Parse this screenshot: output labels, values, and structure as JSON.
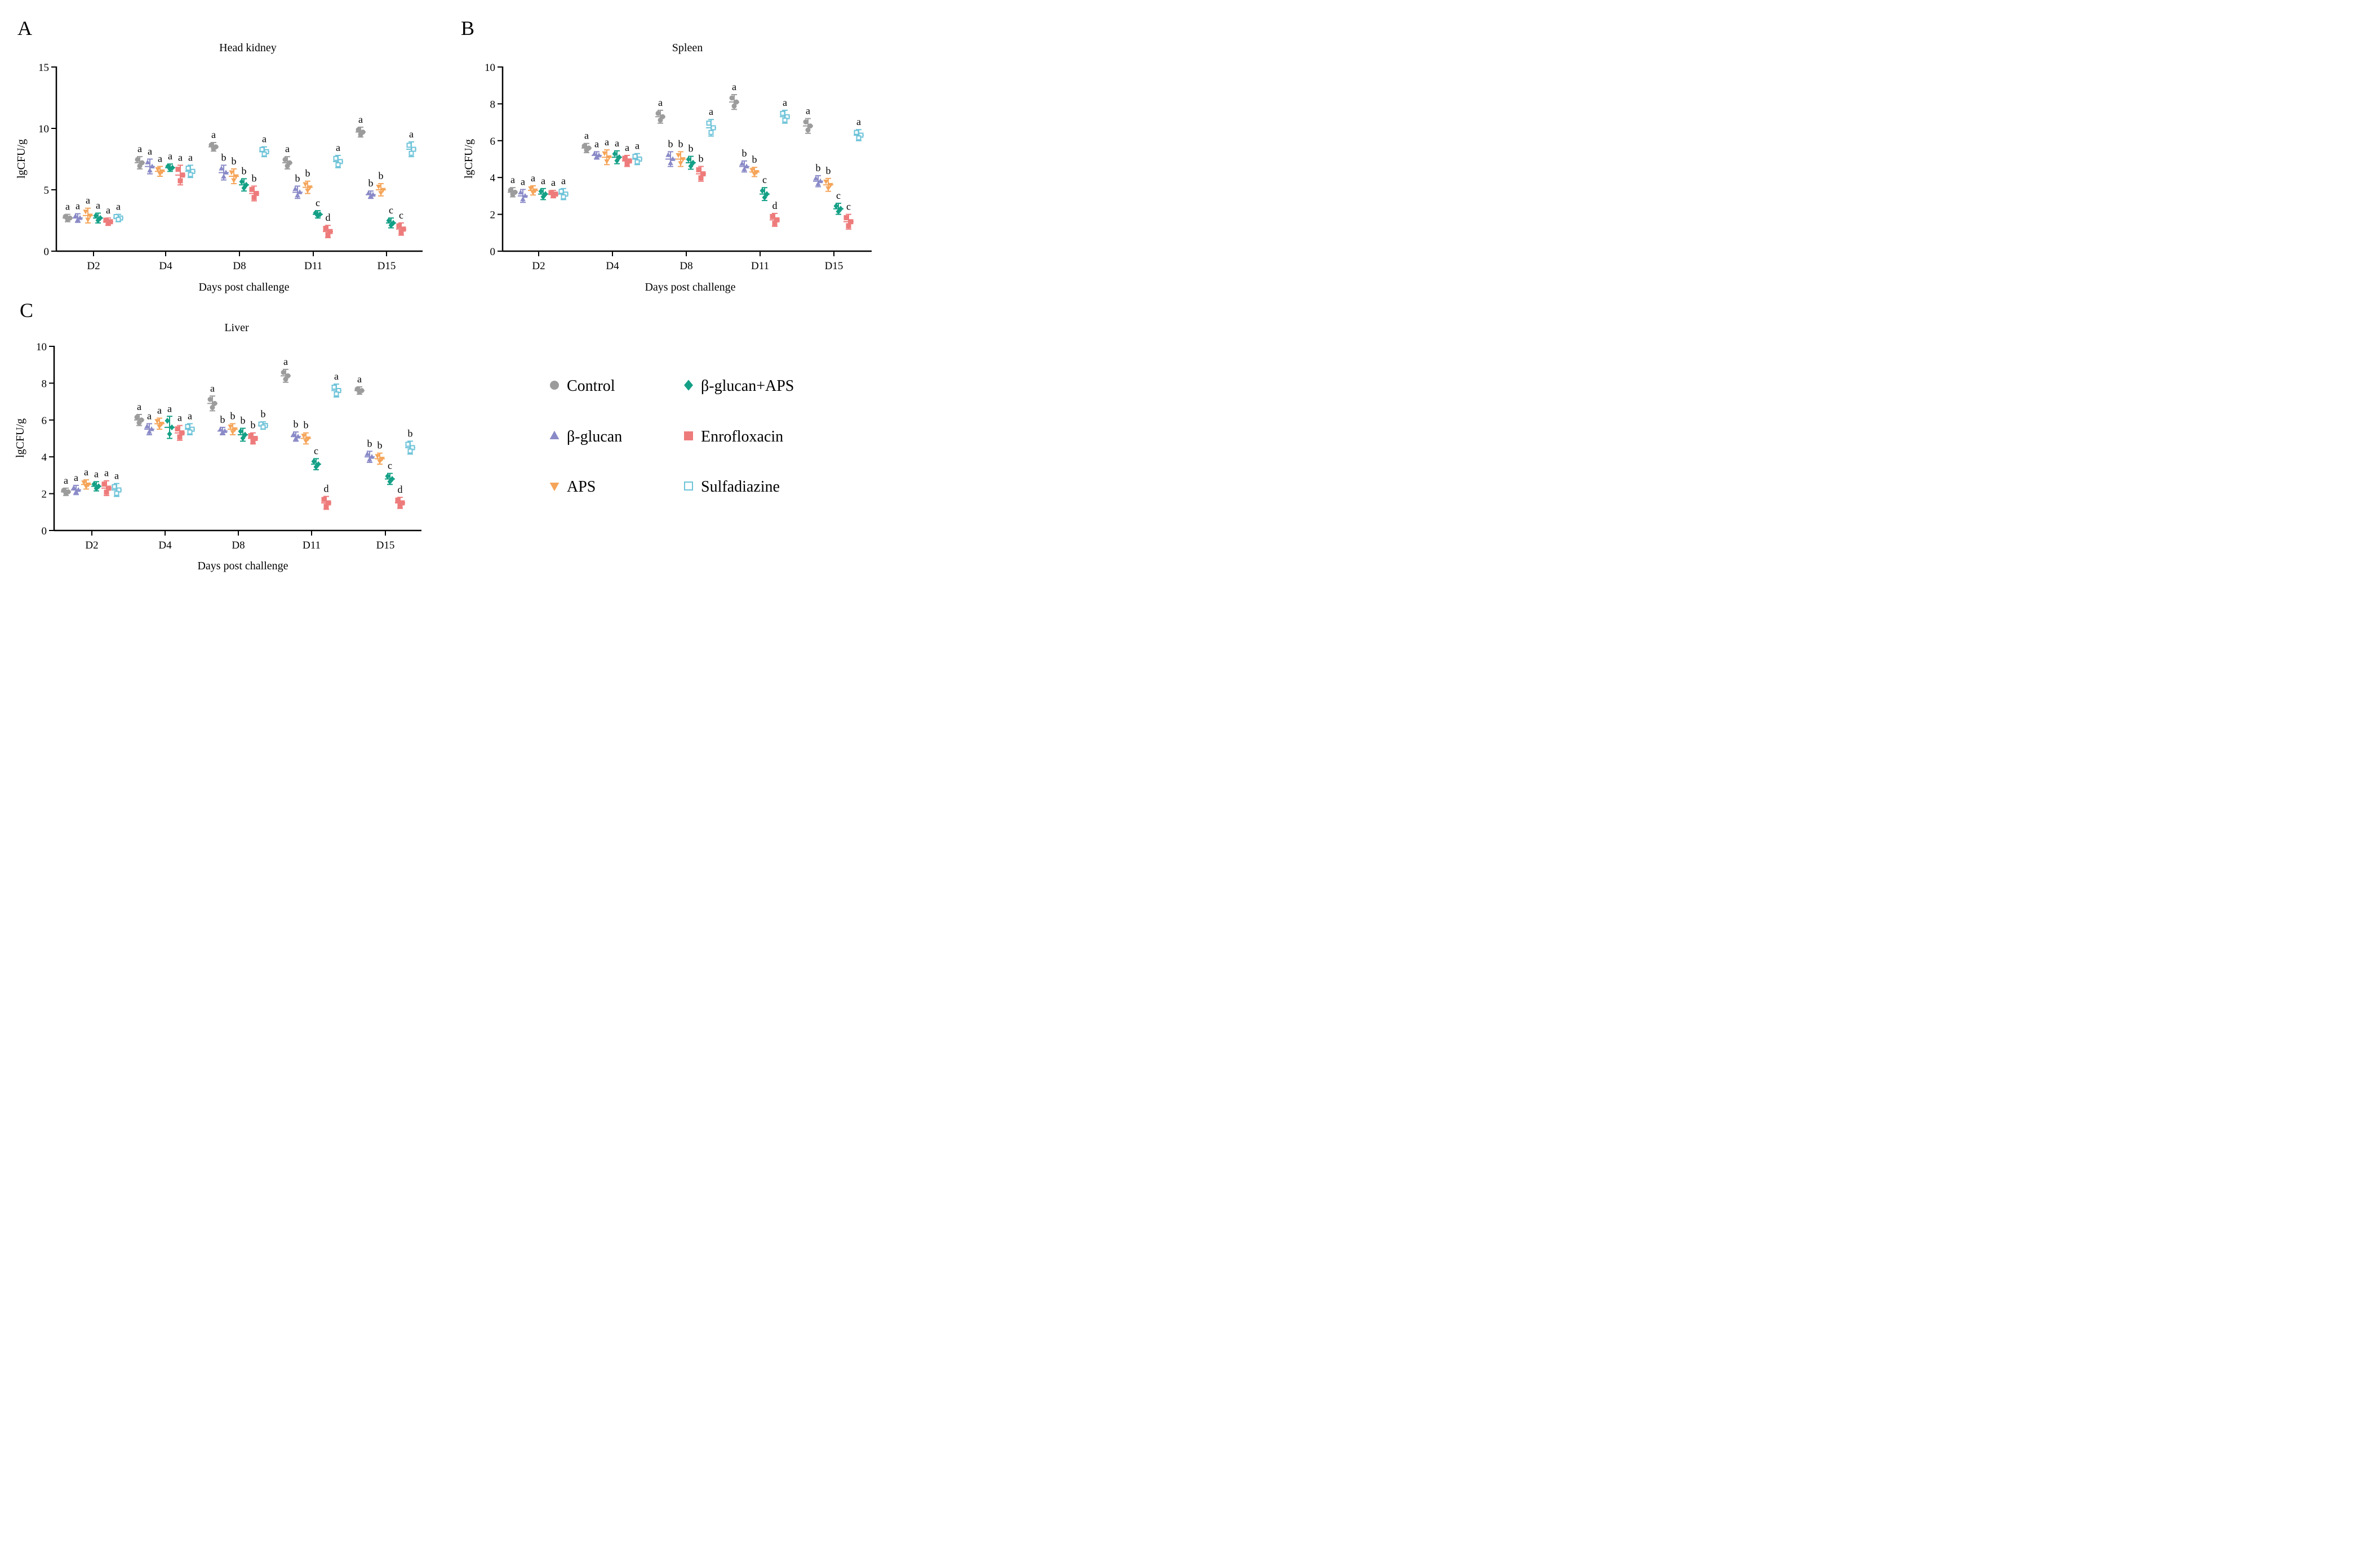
{
  "colors": {
    "Control": "#9c9c9c",
    "β-glucan": "#8a8ac8",
    "APS": "#f5a55a",
    "β-glucan+APS": "#14a086",
    "Enrofloxacin": "#ee7b7b",
    "Sulfadiazine": "#6dc3d8"
  },
  "legend": {
    "items": [
      {
        "name": "Control",
        "marker": "circle"
      },
      {
        "name": "β-glucan+APS",
        "marker": "diamond"
      },
      {
        "name": "β-glucan",
        "marker": "triangle-up"
      },
      {
        "name": "Enrofloxacin",
        "marker": "square"
      },
      {
        "name": "APS",
        "marker": "triangle-down"
      },
      {
        "name": "Sulfadiazine",
        "marker": "open-square"
      }
    ]
  },
  "chart_data": [
    {
      "panel": "A",
      "type": "scatter",
      "title": "Head kidney",
      "xlabel": "Days post challenge",
      "ylabel": "lgCFU/g",
      "ylim": [
        0,
        15
      ],
      "yticks": [
        0,
        5,
        10,
        15
      ],
      "categories": [
        "D2",
        "D4",
        "D8",
        "D11",
        "D15"
      ],
      "series": [
        {
          "name": "Control",
          "marker": "circle",
          "values": [
            2.7,
            7.2,
            8.5,
            7.2,
            9.7
          ],
          "sd": [
            0.3,
            0.5,
            0.35,
            0.5,
            0.4
          ],
          "letters": [
            "a",
            "a",
            "a",
            "a",
            "a"
          ]
        },
        {
          "name": "β-glucan",
          "marker": "triangle-up",
          "values": [
            2.7,
            6.9,
            6.4,
            4.8,
            4.6
          ],
          "sd": [
            0.35,
            0.6,
            0.6,
            0.5,
            0.3
          ],
          "letters": [
            "a",
            "a",
            "b",
            "b",
            "b"
          ]
        },
        {
          "name": "APS",
          "marker": "triangle-down",
          "values": [
            2.9,
            6.5,
            6.1,
            5.2,
            5.0
          ],
          "sd": [
            0.6,
            0.4,
            0.6,
            0.5,
            0.5
          ],
          "letters": [
            "a",
            "a",
            "b",
            "b",
            "b"
          ]
        },
        {
          "name": "β-glucan+APS",
          "marker": "diamond",
          "values": [
            2.7,
            6.8,
            5.4,
            3.0,
            2.3
          ],
          "sd": [
            0.4,
            0.3,
            0.5,
            0.3,
            0.4
          ],
          "letters": [
            "a",
            "a",
            "b",
            "c",
            "c"
          ]
        },
        {
          "name": "Enrofloxacin",
          "marker": "square",
          "values": [
            2.4,
            6.2,
            4.7,
            1.6,
            1.8
          ],
          "sd": [
            0.3,
            0.8,
            0.6,
            0.5,
            0.5
          ],
          "letters": [
            "a",
            "a",
            "b",
            "d",
            "c"
          ]
        },
        {
          "name": "Sulfadiazine",
          "marker": "open-square",
          "values": [
            2.7,
            6.5,
            8.1,
            7.3,
            8.3
          ],
          "sd": [
            0.3,
            0.5,
            0.4,
            0.5,
            0.6
          ],
          "letters": [
            "a",
            "a",
            "a",
            "a",
            "a"
          ]
        }
      ]
    },
    {
      "panel": "B",
      "type": "scatter",
      "title": "Spleen",
      "xlabel": "Days post challenge",
      "ylabel": "lgCFU/g",
      "ylim": [
        0,
        10
      ],
      "yticks": [
        0,
        2,
        4,
        6,
        8,
        10
      ],
      "categories": [
        "D2",
        "D4",
        "D8",
        "D11",
        "D15"
      ],
      "series": [
        {
          "name": "Control",
          "marker": "circle",
          "values": [
            3.2,
            5.6,
            7.3,
            8.1,
            6.8
          ],
          "sd": [
            0.25,
            0.25,
            0.35,
            0.4,
            0.4
          ],
          "letters": [
            "a",
            "a",
            "a",
            "a",
            "a"
          ]
        },
        {
          "name": "β-glucan",
          "marker": "triangle-up",
          "values": [
            3.0,
            5.2,
            5.0,
            4.6,
            3.8
          ],
          "sd": [
            0.35,
            0.2,
            0.4,
            0.3,
            0.3
          ],
          "letters": [
            "a",
            "a",
            "b",
            "b",
            "b"
          ]
        },
        {
          "name": "APS",
          "marker": "triangle-down",
          "values": [
            3.3,
            5.1,
            5.0,
            4.3,
            3.6
          ],
          "sd": [
            0.25,
            0.4,
            0.4,
            0.25,
            0.35
          ],
          "letters": [
            "a",
            "a",
            "b",
            "b",
            "b"
          ]
        },
        {
          "name": "β-glucan+APS",
          "marker": "diamond",
          "values": [
            3.1,
            5.1,
            4.8,
            3.1,
            2.3
          ],
          "sd": [
            0.3,
            0.35,
            0.35,
            0.35,
            0.3
          ],
          "letters": [
            "a",
            "a",
            "b",
            "c",
            "c"
          ]
        },
        {
          "name": "Enrofloxacin",
          "marker": "square",
          "values": [
            3.1,
            4.9,
            4.2,
            1.7,
            1.6
          ],
          "sd": [
            0.2,
            0.3,
            0.4,
            0.35,
            0.4
          ],
          "letters": [
            "a",
            "a",
            "b",
            "d",
            "c"
          ]
        },
        {
          "name": "Sulfadiazine",
          "marker": "open-square",
          "values": [
            3.1,
            5.0,
            6.7,
            7.3,
            6.3
          ],
          "sd": [
            0.3,
            0.3,
            0.45,
            0.35,
            0.3
          ],
          "letters": [
            "a",
            "a",
            "a",
            "a",
            "a"
          ]
        }
      ]
    },
    {
      "panel": "C",
      "type": "scatter",
      "title": "Liver",
      "xlabel": "Days post challenge",
      "ylabel": "lgCFU/g",
      "ylim": [
        0,
        10
      ],
      "yticks": [
        0,
        2,
        4,
        6,
        8,
        10
      ],
      "categories": [
        "D2",
        "D4",
        "D8",
        "D11",
        "D15"
      ],
      "series": [
        {
          "name": "Control",
          "marker": "circle",
          "values": [
            2.1,
            6.0,
            6.9,
            8.4,
            7.6
          ],
          "sd": [
            0.2,
            0.3,
            0.4,
            0.35,
            0.2
          ],
          "letters": [
            "a",
            "a",
            "a",
            "a",
            "a"
          ]
        },
        {
          "name": "β-glucan",
          "marker": "triangle-up",
          "values": [
            2.2,
            5.5,
            5.4,
            5.1,
            4.0
          ],
          "sd": [
            0.25,
            0.3,
            0.2,
            0.25,
            0.3
          ],
          "letters": [
            "a",
            "a",
            "b",
            "b",
            "b"
          ]
        },
        {
          "name": "APS",
          "marker": "triangle-down",
          "values": [
            2.5,
            5.8,
            5.5,
            5.0,
            3.9
          ],
          "sd": [
            0.25,
            0.3,
            0.3,
            0.3,
            0.3
          ],
          "letters": [
            "a",
            "a",
            "b",
            "b",
            "b"
          ]
        },
        {
          "name": "β-glucan+APS",
          "marker": "diamond",
          "values": [
            2.4,
            5.6,
            5.2,
            3.6,
            2.8
          ],
          "sd": [
            0.25,
            0.6,
            0.35,
            0.3,
            0.3
          ],
          "letters": [
            "a",
            "a",
            "b",
            "c",
            "c"
          ]
        },
        {
          "name": "Enrofloxacin",
          "marker": "square",
          "values": [
            2.3,
            5.3,
            5.0,
            1.5,
            1.5
          ],
          "sd": [
            0.4,
            0.4,
            0.3,
            0.35,
            0.3
          ],
          "letters": [
            "a",
            "a",
            "b",
            "d",
            "d"
          ]
        },
        {
          "name": "Sulfadiazine",
          "marker": "open-square",
          "values": [
            2.2,
            5.5,
            5.7,
            7.6,
            4.5
          ],
          "sd": [
            0.35,
            0.3,
            0.2,
            0.35,
            0.35
          ],
          "letters": [
            "a",
            "a",
            "b",
            "a",
            "b"
          ]
        }
      ]
    }
  ]
}
